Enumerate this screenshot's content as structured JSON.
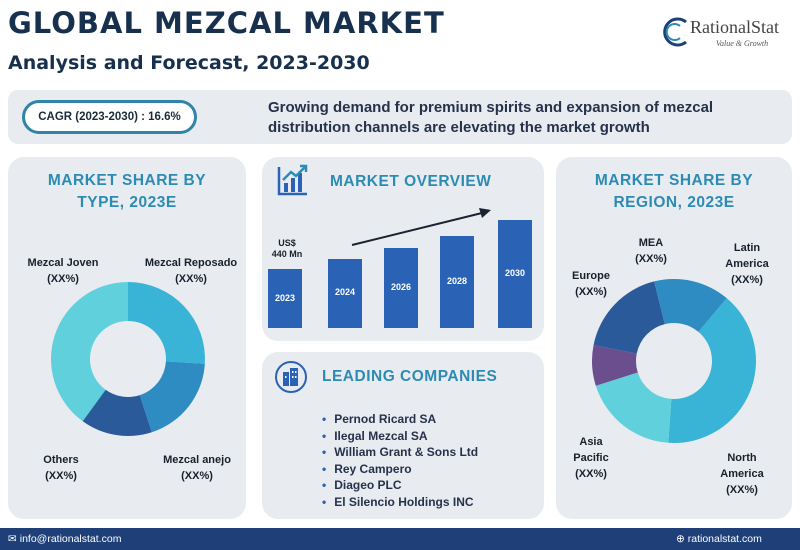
{
  "header": {
    "title": "GLOBAL MEZCAL MARKET",
    "subtitle": "Analysis and Forecast, 2023-2030"
  },
  "logo": {
    "name": "RationalStat",
    "tagline": "Value & Growth"
  },
  "cagr": {
    "label": "CAGR (2023-2030) : 16.6%",
    "description": "Growing demand for premium spirits and expansion of mezcal distribution channels are elevating the market growth"
  },
  "type_panel": {
    "title_line1": "MARKET SHARE BY",
    "title_line2": "TYPE, 2023E",
    "labels": {
      "joven": "Mezcal Joven",
      "joven_val": "(XX%)",
      "reposado": "Mezcal Reposado",
      "reposado_val": "(XX%)",
      "others": "Others",
      "others_val": "(XX%)",
      "anejo": "Mezcal anejo",
      "anejo_val": "(XX%)"
    }
  },
  "overview_panel": {
    "title": "MARKET OVERVIEW",
    "value_line1": "US$",
    "value_line2": "440 Mn"
  },
  "region_panel": {
    "title_line1": "MARKET SHARE BY",
    "title_line2": "REGION, 2023E",
    "labels": {
      "mea": "MEA",
      "mea_val": "(XX%)",
      "latin1": "Latin",
      "latin2": "America",
      "latin_val": "(XX%)",
      "europe": "Europe",
      "europe_val": "(XX%)",
      "asia1": "Asia",
      "asia2": "Pacific",
      "asia_val": "(XX%)",
      "north1": "North",
      "north2": "America",
      "north_val": "(XX%)"
    }
  },
  "companies_panel": {
    "title": "LEADING COMPANIES",
    "items": [
      "Pernod Ricard SA",
      "Ilegal Mezcal SA",
      "William Grant & Sons Ltd",
      "Rey Campero",
      "Diageo PLC",
      "El Silencio Holdings INC"
    ]
  },
  "footer": {
    "email": "info@rationalstat.com",
    "website": "rationalstat.com"
  },
  "colors": {
    "accent": "#2c8bb3",
    "bar": "#2a63b5",
    "navy": "#17304d",
    "donut_light": "#5fd0dc",
    "donut_mid": "#39b3d6",
    "donut_blue": "#2f8cc2",
    "donut_dark": "#2a5a9a",
    "donut_purple": "#6a4e8e"
  },
  "chart_data": [
    {
      "type": "pie",
      "title": "MARKET SHARE BY TYPE, 2023E",
      "categories": [
        "Mezcal Joven",
        "Mezcal Reposado",
        "Mezcal anejo",
        "Others"
      ],
      "values": [
        40,
        26,
        19,
        15
      ]
    },
    {
      "type": "bar",
      "title": "MARKET OVERVIEW",
      "categories": [
        "2023",
        "2024",
        "2026",
        "2028",
        "2030"
      ],
      "values": [
        440,
        520,
        600,
        690,
        810
      ],
      "annotation": "US$ 440 Mn"
    },
    {
      "type": "pie",
      "title": "MARKET SHARE BY REGION, 2023E",
      "categories": [
        "North America",
        "Latin America",
        "MEA",
        "Europe",
        "Asia Pacific"
      ],
      "values": [
        40,
        19,
        8,
        18,
        15
      ]
    }
  ]
}
